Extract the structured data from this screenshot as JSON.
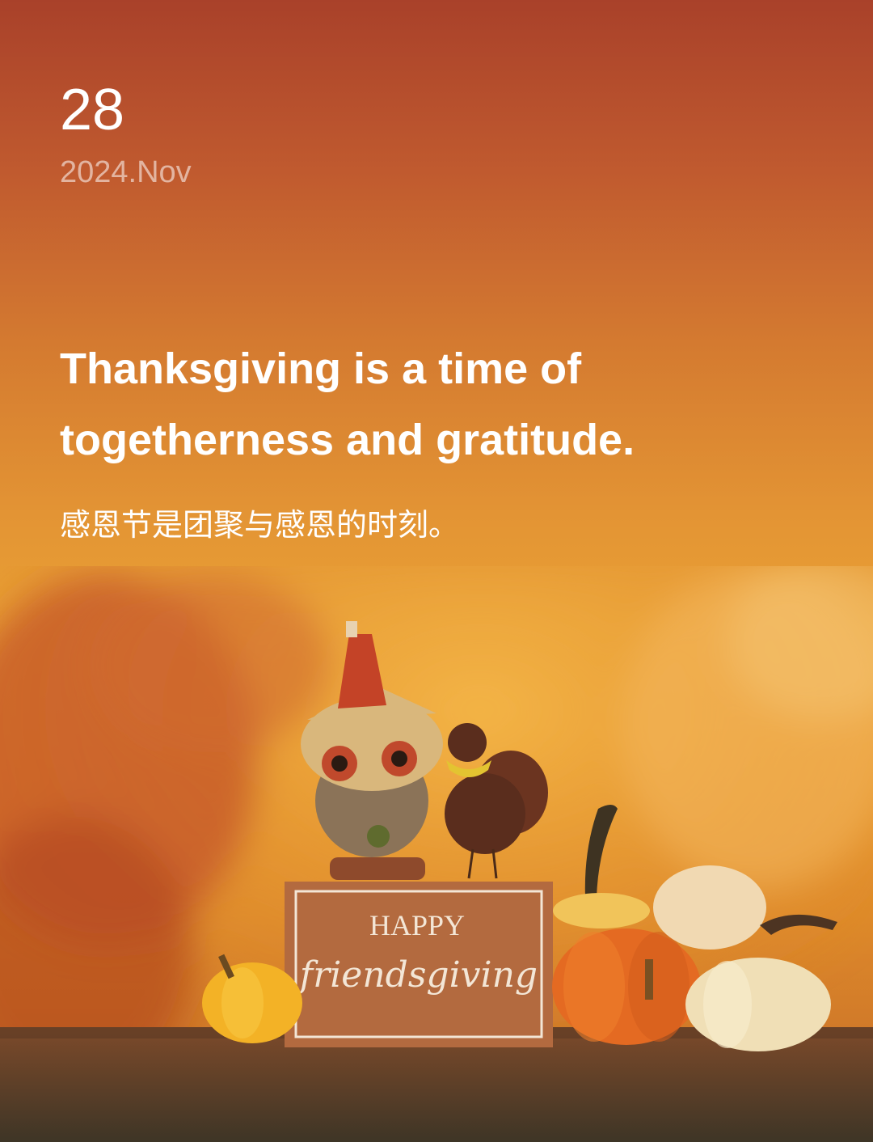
{
  "date": {
    "day": "28",
    "month_year": "2024.Nov"
  },
  "quote": {
    "english": "Thanksgiving is a time of togetherness and gratitude.",
    "chinese": "感恩节是团聚与感恩的时刻。"
  },
  "photo": {
    "sign_line1": "HAPPY",
    "sign_line2": "friendsgiving"
  },
  "colors": {
    "top": "#a9412a",
    "middle": "#e9a034",
    "bottom": "#c46a28",
    "pumpkin": "#e46a22",
    "sign": "#b36a3f"
  }
}
